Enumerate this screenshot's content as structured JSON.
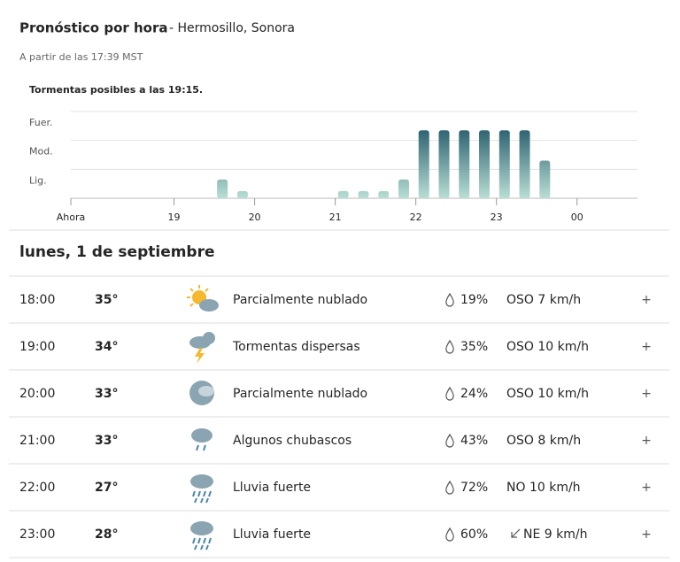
{
  "header": {
    "title": "Pronóstico por hora",
    "location": "- Hermosillo, Sonora",
    "updated": "A partir de las 17:39 MST"
  },
  "chart_data": {
    "type": "bar",
    "title": "Tormentas posibles a las 19:15.",
    "x": [
      19.6,
      19.85,
      21.1,
      21.35,
      21.6,
      21.85,
      22.1,
      22.35,
      22.6,
      22.85,
      23.1,
      23.35,
      23.6
    ],
    "values": [
      0.65,
      0.25,
      0.25,
      0.25,
      0.25,
      0.65,
      2.35,
      2.35,
      2.35,
      2.35,
      2.35,
      2.35,
      1.3
    ],
    "color": "#2f6472",
    "grid": true,
    "xlim": [
      17.72,
      24.75
    ],
    "xticks": [
      {
        "value": 17.72,
        "label": "Ahora"
      },
      19,
      20,
      21,
      22,
      23,
      {
        "value": 24,
        "label": "00"
      }
    ],
    "ylim": [
      0,
      3
    ],
    "yticks": [
      {
        "value": 1,
        "label": "Lig."
      },
      {
        "value": 2,
        "label": "Mod."
      },
      {
        "value": 3,
        "label": "Fuer."
      }
    ]
  },
  "day": {
    "title": "lunes, 1 de septiembre",
    "rows": [
      [
        "18:00",
        "35°",
        "Parcialmente nublado",
        "19%",
        "OSO 7 km/h",
        "+"
      ],
      [
        "19:00",
        "34°",
        "Tormentas dispersas",
        "35%",
        "OSO 10 km/h",
        "+"
      ],
      [
        "20:00",
        "33°",
        "Parcialmente nublado",
        "24%",
        "OSO 10 km/h",
        "+"
      ],
      [
        "21:00",
        "33°",
        "Algunos chubascos",
        "43%",
        "OSO 8 km/h",
        "+"
      ],
      [
        "22:00",
        "27°",
        "Lluvia fuerte",
        "72%",
        "NO 10 km/h",
        "+"
      ],
      [
        "23:00",
        "28°",
        "Lluvia fuerte",
        "60%",
        "NE 9 km/h",
        "+"
      ]
    ]
  }
}
